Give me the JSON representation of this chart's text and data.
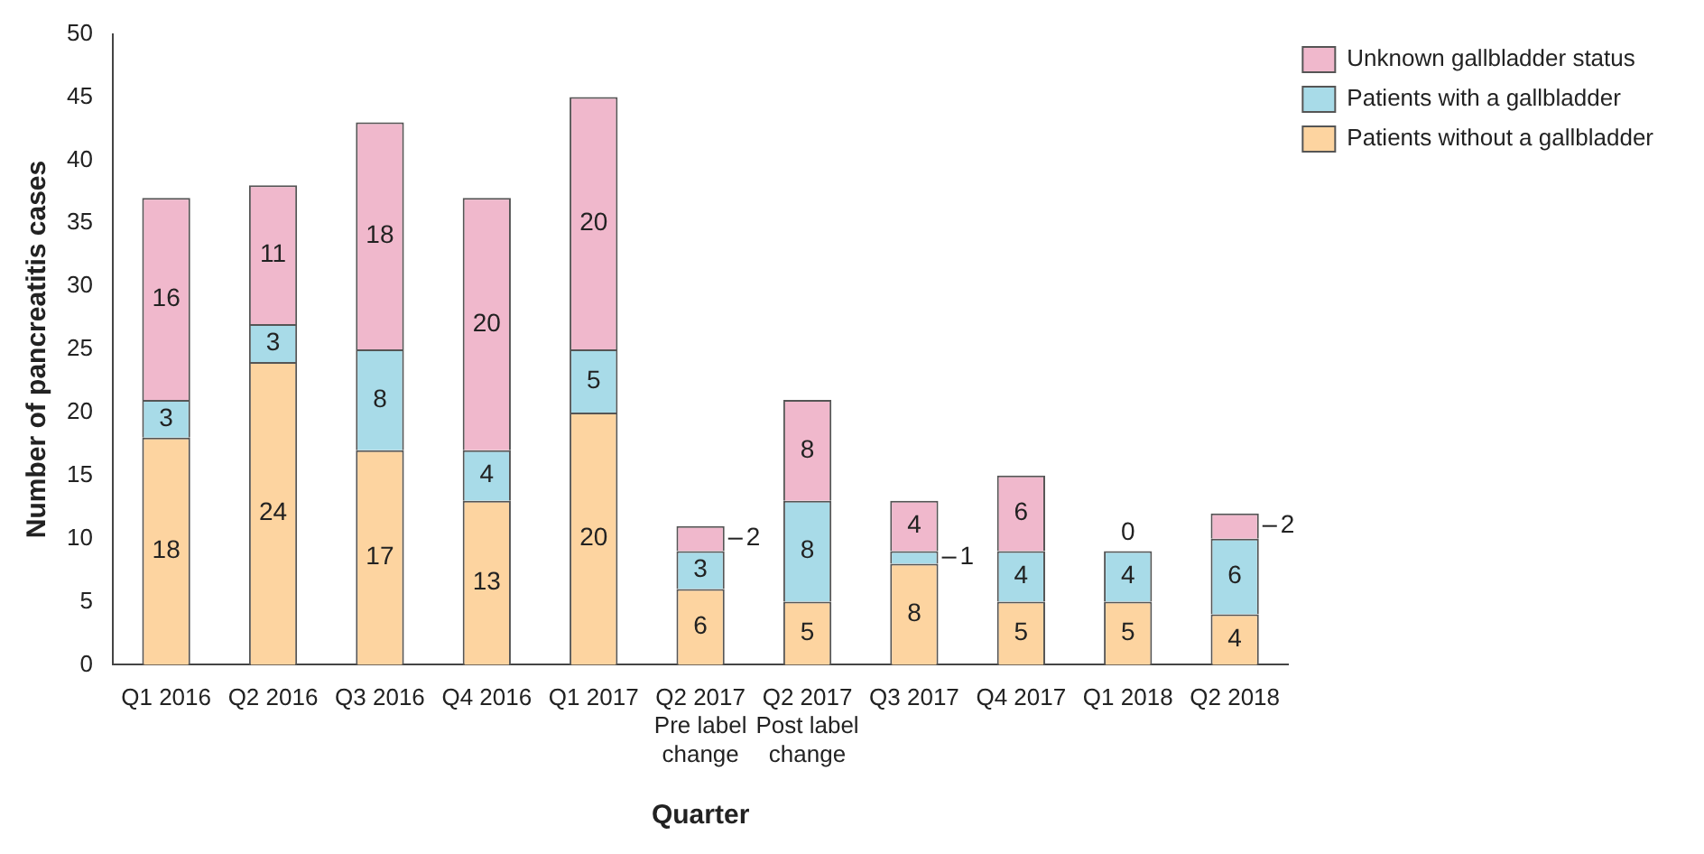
{
  "chart_data": {
    "type": "bar",
    "stacked": true,
    "xlabel": "Quarter",
    "ylabel": "Number of pancreatitis cases",
    "categories": [
      "Q1 2016",
      "Q2 2016",
      "Q3 2016",
      "Q4 2016",
      "Q1 2017",
      "Q2 2017\nPre label\nchange",
      "Q2 2017\nPost label\nchange",
      "Q3 2017",
      "Q4 2017",
      "Q1 2018",
      "Q2 2018"
    ],
    "series": [
      {
        "name": "Patients without a gallbladder",
        "color": "#fdd4a0",
        "values": [
          18,
          24,
          17,
          13,
          20,
          6,
          5,
          8,
          5,
          5,
          4
        ]
      },
      {
        "name": "Patients with a gallbladder",
        "color": "#a8dbe8",
        "values": [
          3,
          3,
          8,
          4,
          5,
          3,
          8,
          1,
          4,
          4,
          6
        ]
      },
      {
        "name": "Unknown gallbladder status",
        "color": "#f0b8cc",
        "values": [
          16,
          11,
          18,
          20,
          20,
          2,
          8,
          4,
          6,
          0,
          2
        ]
      }
    ],
    "ylim": [
      0,
      50
    ],
    "yticks": [
      0,
      5,
      10,
      15,
      20,
      25,
      30,
      35,
      40,
      45,
      50
    ],
    "grid": false,
    "legend": "top right",
    "data_labels": true
  }
}
